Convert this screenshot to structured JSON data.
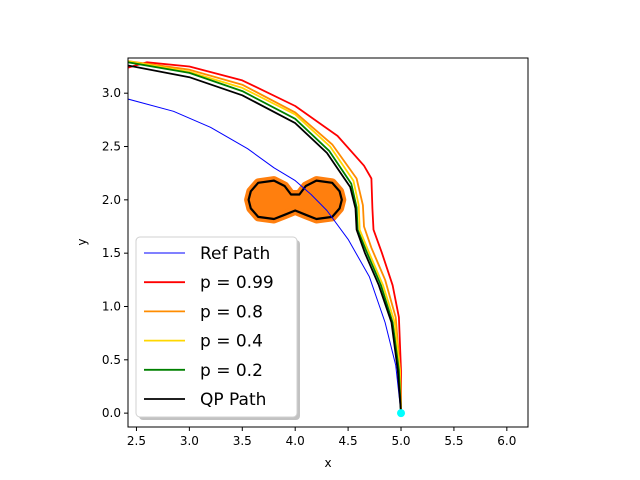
{
  "chart_data": {
    "type": "line",
    "xlabel": "x",
    "ylabel": "y",
    "xlim": [
      2.42,
      6.2
    ],
    "ylim": [
      -0.13,
      3.33
    ],
    "xticks": [
      "2.5",
      "3.0",
      "3.5",
      "4.0",
      "4.5",
      "5.0",
      "5.5",
      "6.0"
    ],
    "yticks": [
      "0.0",
      "0.5",
      "1.0",
      "1.5",
      "2.0",
      "2.5",
      "3.0"
    ],
    "legend_position": "lower-left",
    "series": [
      {
        "name": "Ref Path",
        "color": "#0000ff",
        "width": 1,
        "points": [
          [
            2.4,
            2.95
          ],
          [
            2.85,
            2.83
          ],
          [
            3.2,
            2.68
          ],
          [
            3.55,
            2.48
          ],
          [
            3.8,
            2.3
          ],
          [
            4.0,
            2.18
          ],
          [
            4.15,
            2.05
          ],
          [
            4.3,
            1.9
          ],
          [
            4.5,
            1.63
          ],
          [
            4.7,
            1.28
          ],
          [
            4.85,
            0.85
          ],
          [
            4.95,
            0.45
          ],
          [
            5.0,
            0.0
          ]
        ]
      },
      {
        "name": "p = 0.99",
        "color": "#ff0000",
        "width": 1.8,
        "points": [
          [
            2.42,
            3.24
          ],
          [
            2.6,
            3.29
          ],
          [
            3.0,
            3.25
          ],
          [
            3.5,
            3.12
          ],
          [
            4.0,
            2.88
          ],
          [
            4.4,
            2.6
          ],
          [
            4.65,
            2.32
          ],
          [
            4.72,
            2.2
          ],
          [
            4.73,
            1.92
          ],
          [
            4.74,
            1.72
          ],
          [
            4.82,
            1.5
          ],
          [
            4.92,
            1.2
          ],
          [
            4.98,
            0.9
          ],
          [
            5.0,
            0.4
          ],
          [
            5.0,
            0.0
          ]
        ]
      },
      {
        "name": "p = 0.8",
        "color": "#ff8c00",
        "width": 1.8,
        "points": [
          [
            2.42,
            3.3
          ],
          [
            3.0,
            3.22
          ],
          [
            3.5,
            3.08
          ],
          [
            4.0,
            2.82
          ],
          [
            4.35,
            2.52
          ],
          [
            4.58,
            2.2
          ],
          [
            4.64,
            1.95
          ],
          [
            4.65,
            1.75
          ],
          [
            4.72,
            1.55
          ],
          [
            4.85,
            1.25
          ],
          [
            4.95,
            0.9
          ],
          [
            4.99,
            0.4
          ],
          [
            5.0,
            0.0
          ]
        ]
      },
      {
        "name": "p = 0.4",
        "color": "#ffd700",
        "width": 1.8,
        "points": [
          [
            2.42,
            3.3
          ],
          [
            3.0,
            3.2
          ],
          [
            3.5,
            3.05
          ],
          [
            4.0,
            2.8
          ],
          [
            4.33,
            2.5
          ],
          [
            4.55,
            2.18
          ],
          [
            4.6,
            1.95
          ],
          [
            4.61,
            1.72
          ],
          [
            4.7,
            1.5
          ],
          [
            4.83,
            1.2
          ],
          [
            4.94,
            0.85
          ],
          [
            4.99,
            0.4
          ],
          [
            5.0,
            0.0
          ]
        ]
      },
      {
        "name": "p = 0.2",
        "color": "#008000",
        "width": 1.8,
        "points": [
          [
            2.42,
            3.29
          ],
          [
            3.0,
            3.19
          ],
          [
            3.5,
            3.02
          ],
          [
            4.0,
            2.76
          ],
          [
            4.32,
            2.46
          ],
          [
            4.53,
            2.15
          ],
          [
            4.58,
            1.93
          ],
          [
            4.59,
            1.72
          ],
          [
            4.68,
            1.5
          ],
          [
            4.81,
            1.2
          ],
          [
            4.92,
            0.85
          ],
          [
            4.98,
            0.4
          ],
          [
            5.0,
            0.0
          ]
        ]
      },
      {
        "name": "QP Path",
        "color": "#000000",
        "width": 1.8,
        "points": [
          [
            2.42,
            3.26
          ],
          [
            3.0,
            3.15
          ],
          [
            3.5,
            2.98
          ],
          [
            4.0,
            2.72
          ],
          [
            4.3,
            2.44
          ],
          [
            4.52,
            2.12
          ],
          [
            4.57,
            1.92
          ],
          [
            4.58,
            1.72
          ],
          [
            4.66,
            1.5
          ],
          [
            4.79,
            1.2
          ],
          [
            4.91,
            0.85
          ],
          [
            4.97,
            0.4
          ],
          [
            5.0,
            0.0
          ]
        ]
      }
    ],
    "obstacle": {
      "fill": "#ff7f0e",
      "outline_color": "#000000",
      "points": [
        [
          3.65,
          2.16
        ],
        [
          3.8,
          2.18
        ],
        [
          3.9,
          2.13
        ],
        [
          3.96,
          2.05
        ],
        [
          4.04,
          2.05
        ],
        [
          4.1,
          2.13
        ],
        [
          4.2,
          2.18
        ],
        [
          4.35,
          2.16
        ],
        [
          4.42,
          2.08
        ],
        [
          4.44,
          2.0
        ],
        [
          4.42,
          1.92
        ],
        [
          4.35,
          1.84
        ],
        [
          4.2,
          1.82
        ],
        [
          4.1,
          1.86
        ],
        [
          4.0,
          1.9
        ],
        [
          3.9,
          1.86
        ],
        [
          3.8,
          1.82
        ],
        [
          3.65,
          1.84
        ],
        [
          3.58,
          1.92
        ],
        [
          3.56,
          2.0
        ],
        [
          3.58,
          2.08
        ]
      ]
    },
    "start_point": {
      "x": 5.0,
      "y": 0.0,
      "color": "#00ffff"
    }
  }
}
